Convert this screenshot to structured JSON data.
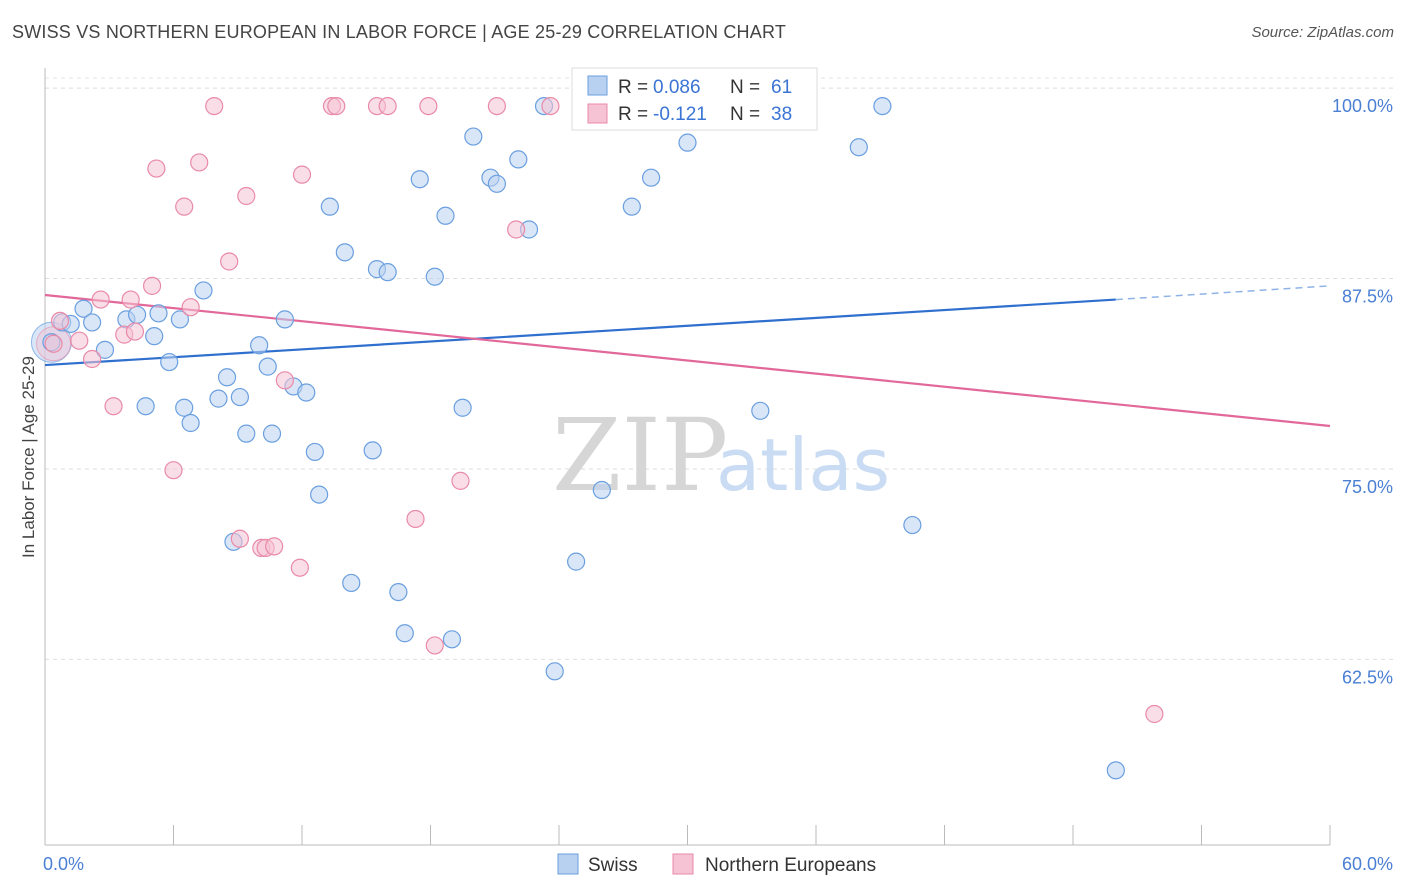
{
  "title": "SWISS VS NORTHERN EUROPEAN IN LABOR FORCE | AGE 25-29 CORRELATION CHART",
  "source": "Source: ZipAtlas.com",
  "chart_data": {
    "type": "scatter",
    "xlabel": "",
    "ylabel": "In Labor Force | Age 25-29",
    "xlim": [
      0,
      60
    ],
    "ylim": [
      51.5,
      102.5
    ],
    "x_tick_labels": [
      {
        "value": 0,
        "label": "0.0%"
      },
      {
        "value": 60,
        "label": "60.0%"
      }
    ],
    "y_ticks": [
      {
        "value": 100.0,
        "label": "100.0%"
      },
      {
        "value": 87.5,
        "label": "87.5%"
      },
      {
        "value": 75.0,
        "label": "75.0%"
      },
      {
        "value": 62.5,
        "label": "62.5%"
      }
    ],
    "grid": "horizontal dashed",
    "legend_position": "top-center",
    "watermark": {
      "zip": "ZIP",
      "atlas": "atlas"
    },
    "legend": [
      {
        "r_label": "R =",
        "r_value": "0.086",
        "n_label": "N =",
        "n_value": "61"
      },
      {
        "r_label": "R =",
        "r_value": "-0.121",
        "n_label": "N =",
        "n_value": "38"
      }
    ],
    "series": [
      {
        "name": "Swiss",
        "color": "#6a9fe0",
        "fill": "#b9d1f0",
        "trend": {
          "x0": 0,
          "y0": 83.0,
          "x1": 50.0,
          "y1": 87.3,
          "dash_to_x": 60,
          "dash_to_y": 88.2
        },
        "points": [
          [
            0.3,
            84.5
          ],
          [
            0.8,
            85.8
          ],
          [
            1.2,
            85.7
          ],
          [
            1.8,
            86.7
          ],
          [
            2.2,
            85.8
          ],
          [
            2.8,
            84.0
          ],
          [
            3.8,
            86.0
          ],
          [
            4.3,
            86.3
          ],
          [
            4.7,
            80.3
          ],
          [
            5.1,
            84.9
          ],
          [
            5.3,
            86.4
          ],
          [
            5.8,
            83.2
          ],
          [
            6.3,
            86.0
          ],
          [
            6.5,
            80.2
          ],
          [
            6.8,
            79.2
          ],
          [
            7.4,
            87.9
          ],
          [
            8.1,
            80.8
          ],
          [
            8.5,
            82.2
          ],
          [
            8.8,
            71.4
          ],
          [
            9.1,
            80.9
          ],
          [
            9.4,
            78.5
          ],
          [
            10.0,
            84.3
          ],
          [
            10.4,
            82.9
          ],
          [
            10.6,
            78.5
          ],
          [
            11.2,
            86.0
          ],
          [
            11.6,
            81.6
          ],
          [
            12.2,
            81.2
          ],
          [
            12.6,
            77.3
          ],
          [
            12.8,
            74.5
          ],
          [
            13.3,
            93.4
          ],
          [
            14.0,
            90.4
          ],
          [
            14.3,
            68.7
          ],
          [
            15.3,
            77.4
          ],
          [
            15.5,
            89.3
          ],
          [
            16.0,
            89.1
          ],
          [
            16.5,
            68.1
          ],
          [
            16.8,
            65.4
          ],
          [
            17.5,
            95.2
          ],
          [
            18.2,
            88.8
          ],
          [
            18.7,
            92.8
          ],
          [
            19.0,
            65.0
          ],
          [
            19.5,
            80.2
          ],
          [
            20.0,
            98.0
          ],
          [
            20.8,
            95.3
          ],
          [
            21.1,
            94.9
          ],
          [
            22.1,
            96.5
          ],
          [
            22.6,
            91.9
          ],
          [
            23.3,
            100.0
          ],
          [
            23.8,
            62.9
          ],
          [
            24.8,
            70.1
          ],
          [
            25.7,
            100.0
          ],
          [
            26.0,
            74.8
          ],
          [
            27.4,
            93.4
          ],
          [
            28.3,
            95.3
          ],
          [
            30.0,
            97.6
          ],
          [
            31.2,
            100.0
          ],
          [
            33.4,
            80.0
          ],
          [
            38.0,
            97.3
          ],
          [
            39.1,
            100.0
          ],
          [
            40.5,
            72.5
          ],
          [
            50.0,
            56.4
          ]
        ]
      },
      {
        "name": "Northern Europeans",
        "color": "#e98aa8",
        "fill": "#f5c3d3",
        "trend": {
          "x0": 0,
          "y0": 87.6,
          "x1": 60,
          "y1": 79.0
        },
        "points": [
          [
            0.4,
            84.4
          ],
          [
            0.7,
            85.9
          ],
          [
            1.6,
            84.6
          ],
          [
            2.2,
            83.4
          ],
          [
            2.6,
            87.3
          ],
          [
            3.2,
            80.3
          ],
          [
            3.7,
            85.0
          ],
          [
            4.0,
            87.3
          ],
          [
            4.2,
            85.2
          ],
          [
            5.0,
            88.2
          ],
          [
            5.2,
            95.9
          ],
          [
            6.0,
            76.1
          ],
          [
            6.5,
            93.4
          ],
          [
            6.8,
            86.8
          ],
          [
            7.2,
            96.3
          ],
          [
            7.9,
            100.0
          ],
          [
            8.6,
            89.8
          ],
          [
            9.1,
            71.6
          ],
          [
            9.4,
            94.1
          ],
          [
            10.1,
            71.0
          ],
          [
            10.3,
            71.0
          ],
          [
            10.7,
            71.1
          ],
          [
            11.2,
            82.0
          ],
          [
            11.9,
            69.7
          ],
          [
            12.0,
            95.5
          ],
          [
            13.4,
            100.0
          ],
          [
            13.6,
            100.0
          ],
          [
            15.5,
            100.0
          ],
          [
            16.0,
            100.0
          ],
          [
            17.3,
            72.9
          ],
          [
            17.9,
            100.0
          ],
          [
            18.2,
            64.6
          ],
          [
            19.4,
            75.4
          ],
          [
            21.1,
            100.0
          ],
          [
            22.0,
            91.9
          ],
          [
            23.6,
            100.0
          ],
          [
            33.9,
            100.0
          ],
          [
            51.8,
            60.1
          ]
        ]
      }
    ]
  }
}
